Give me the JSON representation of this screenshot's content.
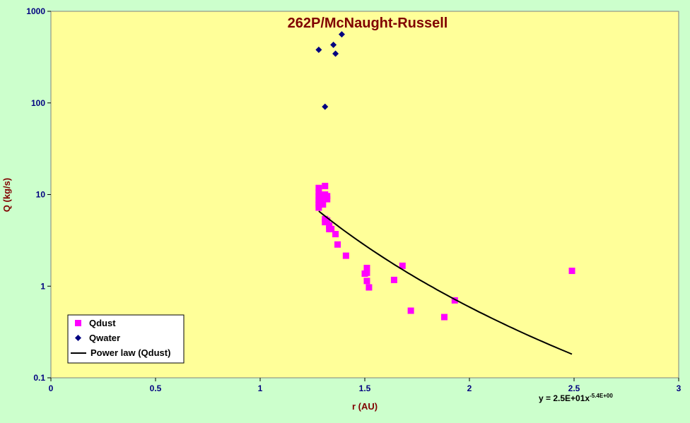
{
  "chart_data": {
    "type": "scatter",
    "title": "262P/McNaught-Russell",
    "xlabel": "r (AU)",
    "ylabel": "Q (kg/s)",
    "xlim": [
      0,
      3
    ],
    "ylim": [
      0.1,
      1000
    ],
    "yscale": "log",
    "x_ticks": [
      "0",
      "0.5",
      "1",
      "1.5",
      "2",
      "2.5",
      "3"
    ],
    "y_ticks": [
      "0.1",
      "1",
      "10",
      "100",
      "1000"
    ],
    "grid": false,
    "legend_position": "bottom-left",
    "series": [
      {
        "name": "Qdust",
        "marker": "square",
        "color": "#ff00ff",
        "points": [
          [
            1.28,
            11.8
          ],
          [
            1.28,
            10.5
          ],
          [
            1.28,
            9.6
          ],
          [
            1.28,
            8.8
          ],
          [
            1.28,
            8.2
          ],
          [
            1.28,
            7.7
          ],
          [
            1.28,
            7.2
          ],
          [
            1.29,
            9.4
          ],
          [
            1.29,
            8.4
          ],
          [
            1.3,
            7.8
          ],
          [
            1.31,
            12.4
          ],
          [
            1.31,
            10.0
          ],
          [
            1.32,
            9.6
          ],
          [
            1.32,
            8.9
          ],
          [
            1.31,
            5.4
          ],
          [
            1.31,
            5.0
          ],
          [
            1.32,
            5.2
          ],
          [
            1.33,
            4.6
          ],
          [
            1.33,
            4.2
          ],
          [
            1.34,
            4.2
          ],
          [
            1.36,
            3.7
          ],
          [
            1.37,
            2.85
          ],
          [
            1.41,
            2.15
          ],
          [
            1.5,
            1.37
          ],
          [
            1.51,
            1.58
          ],
          [
            1.51,
            1.4
          ],
          [
            1.51,
            1.14
          ],
          [
            1.52,
            0.97
          ],
          [
            1.64,
            1.17
          ],
          [
            1.68,
            1.67
          ],
          [
            1.72,
            0.54
          ],
          [
            1.88,
            0.46
          ],
          [
            1.93,
            0.7
          ],
          [
            2.49,
            1.47
          ]
        ]
      },
      {
        "name": "Qwater",
        "marker": "diamond",
        "color": "#000080",
        "points": [
          [
            1.28,
            380
          ],
          [
            1.31,
            91
          ],
          [
            1.35,
            430
          ],
          [
            1.36,
            345
          ],
          [
            1.39,
            560
          ]
        ]
      },
      {
        "name": "Power law (Qdust)",
        "type": "line",
        "color": "#000000",
        "model": {
          "a": 25,
          "b": -5.4
        },
        "x_range": [
          1.28,
          2.49
        ]
      }
    ],
    "equation": {
      "text": "y = 2.5E+01x",
      "exponent": "-5.4E+00"
    }
  },
  "colors": {
    "plot_background": "#ffff99",
    "chart_background": "#ccffcc"
  }
}
